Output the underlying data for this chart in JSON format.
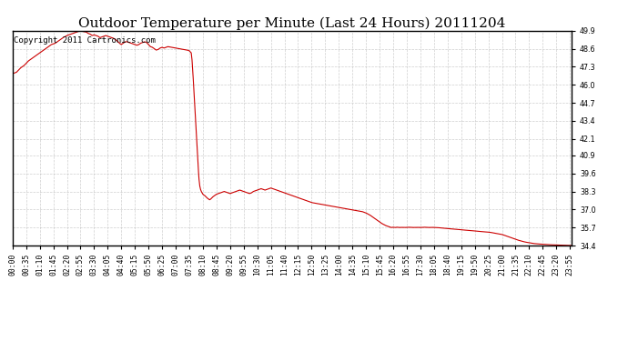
{
  "title": "Outdoor Temperature per Minute (Last 24 Hours) 20111204",
  "copyright_text": "Copyright 2011 Cartronics.com",
  "line_color": "#cc0000",
  "background_color": "#ffffff",
  "grid_color": "#bbbbbb",
  "ylim": [
    34.4,
    49.9
  ],
  "yticks": [
    34.4,
    35.7,
    37.0,
    38.3,
    39.6,
    40.9,
    42.1,
    43.4,
    44.7,
    46.0,
    47.3,
    48.6,
    49.9
  ],
  "title_fontsize": 11,
  "copyright_fontsize": 6.5,
  "tick_fontsize": 5.8,
  "x_tick_interval": 35,
  "total_minutes": 1440,
  "data_points": [
    [
      0,
      46.8
    ],
    [
      10,
      46.9
    ],
    [
      20,
      47.2
    ],
    [
      30,
      47.4
    ],
    [
      40,
      47.7
    ],
    [
      50,
      47.9
    ],
    [
      60,
      48.1
    ],
    [
      70,
      48.3
    ],
    [
      80,
      48.5
    ],
    [
      90,
      48.7
    ],
    [
      100,
      48.9
    ],
    [
      110,
      49.0
    ],
    [
      120,
      49.2
    ],
    [
      130,
      49.4
    ],
    [
      140,
      49.55
    ],
    [
      150,
      49.65
    ],
    [
      160,
      49.75
    ],
    [
      170,
      49.85
    ],
    [
      175,
      49.9
    ],
    [
      180,
      49.85
    ],
    [
      190,
      49.8
    ],
    [
      195,
      49.7
    ],
    [
      200,
      49.65
    ],
    [
      205,
      49.55
    ],
    [
      210,
      49.6
    ],
    [
      215,
      49.55
    ],
    [
      220,
      49.5
    ],
    [
      225,
      49.4
    ],
    [
      230,
      49.45
    ],
    [
      235,
      49.5
    ],
    [
      240,
      49.55
    ],
    [
      245,
      49.5
    ],
    [
      250,
      49.45
    ],
    [
      255,
      49.4
    ],
    [
      260,
      49.35
    ],
    [
      265,
      49.25
    ],
    [
      270,
      49.15
    ],
    [
      275,
      49.0
    ],
    [
      280,
      48.9
    ],
    [
      285,
      49.0
    ],
    [
      290,
      49.1
    ],
    [
      295,
      49.1
    ],
    [
      300,
      49.05
    ],
    [
      305,
      49.0
    ],
    [
      310,
      48.95
    ],
    [
      315,
      48.9
    ],
    [
      320,
      48.85
    ],
    [
      325,
      48.9
    ],
    [
      330,
      49.0
    ],
    [
      335,
      49.05
    ],
    [
      340,
      49.1
    ],
    [
      345,
      49.05
    ],
    [
      350,
      48.9
    ],
    [
      355,
      48.75
    ],
    [
      360,
      48.7
    ],
    [
      365,
      48.6
    ],
    [
      370,
      48.5
    ],
    [
      375,
      48.55
    ],
    [
      380,
      48.65
    ],
    [
      385,
      48.7
    ],
    [
      390,
      48.65
    ],
    [
      395,
      48.7
    ],
    [
      400,
      48.75
    ],
    [
      410,
      48.7
    ],
    [
      420,
      48.65
    ],
    [
      430,
      48.6
    ],
    [
      440,
      48.55
    ],
    [
      450,
      48.5
    ],
    [
      455,
      48.45
    ],
    [
      460,
      48.3
    ],
    [
      462,
      47.8
    ],
    [
      464,
      47.0
    ],
    [
      466,
      46.0
    ],
    [
      468,
      45.0
    ],
    [
      470,
      44.0
    ],
    [
      472,
      43.0
    ],
    [
      474,
      42.0
    ],
    [
      476,
      41.0
    ],
    [
      478,
      40.0
    ],
    [
      480,
      39.2
    ],
    [
      482,
      38.7
    ],
    [
      484,
      38.45
    ],
    [
      486,
      38.3
    ],
    [
      488,
      38.2
    ],
    [
      490,
      38.1
    ],
    [
      492,
      38.05
    ],
    [
      495,
      38.0
    ],
    [
      500,
      37.85
    ],
    [
      505,
      37.75
    ],
    [
      507,
      37.7
    ],
    [
      510,
      37.75
    ],
    [
      515,
      37.9
    ],
    [
      520,
      38.0
    ],
    [
      525,
      38.1
    ],
    [
      530,
      38.15
    ],
    [
      535,
      38.2
    ],
    [
      540,
      38.25
    ],
    [
      545,
      38.3
    ],
    [
      550,
      38.25
    ],
    [
      555,
      38.2
    ],
    [
      560,
      38.15
    ],
    [
      565,
      38.2
    ],
    [
      570,
      38.25
    ],
    [
      575,
      38.3
    ],
    [
      580,
      38.35
    ],
    [
      585,
      38.4
    ],
    [
      590,
      38.35
    ],
    [
      595,
      38.3
    ],
    [
      600,
      38.25
    ],
    [
      605,
      38.2
    ],
    [
      610,
      38.15
    ],
    [
      615,
      38.2
    ],
    [
      620,
      38.3
    ],
    [
      625,
      38.35
    ],
    [
      630,
      38.4
    ],
    [
      635,
      38.45
    ],
    [
      640,
      38.5
    ],
    [
      645,
      38.45
    ],
    [
      650,
      38.4
    ],
    [
      655,
      38.45
    ],
    [
      660,
      38.5
    ],
    [
      665,
      38.55
    ],
    [
      670,
      38.5
    ],
    [
      675,
      38.45
    ],
    [
      680,
      38.4
    ],
    [
      685,
      38.35
    ],
    [
      690,
      38.3
    ],
    [
      695,
      38.25
    ],
    [
      700,
      38.2
    ],
    [
      705,
      38.15
    ],
    [
      710,
      38.1
    ],
    [
      715,
      38.05
    ],
    [
      720,
      38.0
    ],
    [
      725,
      37.95
    ],
    [
      730,
      37.9
    ],
    [
      735,
      37.85
    ],
    [
      740,
      37.8
    ],
    [
      745,
      37.75
    ],
    [
      750,
      37.7
    ],
    [
      755,
      37.65
    ],
    [
      760,
      37.6
    ],
    [
      770,
      37.5
    ],
    [
      780,
      37.45
    ],
    [
      790,
      37.4
    ],
    [
      800,
      37.35
    ],
    [
      810,
      37.3
    ],
    [
      820,
      37.25
    ],
    [
      830,
      37.2
    ],
    [
      840,
      37.15
    ],
    [
      850,
      37.1
    ],
    [
      860,
      37.05
    ],
    [
      870,
      37.0
    ],
    [
      880,
      36.95
    ],
    [
      890,
      36.9
    ],
    [
      900,
      36.85
    ],
    [
      910,
      36.75
    ],
    [
      920,
      36.6
    ],
    [
      930,
      36.4
    ],
    [
      940,
      36.2
    ],
    [
      950,
      36.0
    ],
    [
      960,
      35.85
    ],
    [
      970,
      35.75
    ],
    [
      975,
      35.7
    ],
    [
      980,
      35.72
    ],
    [
      985,
      35.7
    ],
    [
      990,
      35.72
    ],
    [
      995,
      35.7
    ],
    [
      1000,
      35.71
    ],
    [
      1010,
      35.7
    ],
    [
      1020,
      35.72
    ],
    [
      1030,
      35.7
    ],
    [
      1040,
      35.71
    ],
    [
      1050,
      35.7
    ],
    [
      1060,
      35.72
    ],
    [
      1070,
      35.7
    ],
    [
      1080,
      35.71
    ],
    [
      1090,
      35.7
    ],
    [
      1100,
      35.68
    ],
    [
      1110,
      35.65
    ],
    [
      1120,
      35.62
    ],
    [
      1130,
      35.6
    ],
    [
      1140,
      35.58
    ],
    [
      1150,
      35.55
    ],
    [
      1160,
      35.52
    ],
    [
      1170,
      35.5
    ],
    [
      1180,
      35.48
    ],
    [
      1190,
      35.45
    ],
    [
      1200,
      35.42
    ],
    [
      1210,
      35.4
    ],
    [
      1220,
      35.38
    ],
    [
      1230,
      35.35
    ],
    [
      1240,
      35.3
    ],
    [
      1250,
      35.25
    ],
    [
      1260,
      35.2
    ],
    [
      1270,
      35.1
    ],
    [
      1280,
      35.0
    ],
    [
      1290,
      34.9
    ],
    [
      1300,
      34.8
    ],
    [
      1310,
      34.72
    ],
    [
      1320,
      34.65
    ],
    [
      1330,
      34.6
    ],
    [
      1340,
      34.55
    ],
    [
      1350,
      34.52
    ],
    [
      1360,
      34.5
    ],
    [
      1370,
      34.48
    ],
    [
      1380,
      34.46
    ],
    [
      1390,
      34.45
    ],
    [
      1400,
      34.44
    ],
    [
      1410,
      34.43
    ],
    [
      1420,
      34.42
    ],
    [
      1430,
      34.41
    ],
    [
      1439,
      34.4
    ]
  ]
}
